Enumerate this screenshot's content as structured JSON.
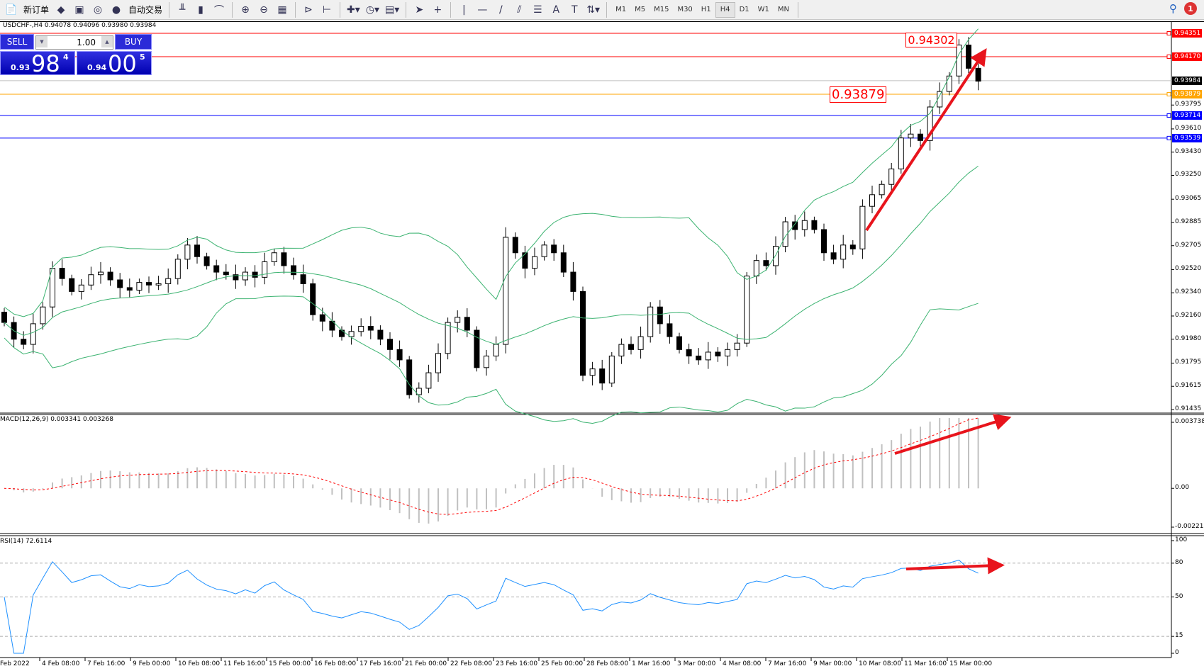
{
  "toolbar": {
    "new_order": "新订单",
    "auto_trading": "自动交易",
    "timeframes": [
      "M1",
      "M5",
      "M15",
      "M30",
      "H1",
      "H4",
      "D1",
      "W1",
      "MN"
    ],
    "active_timeframe": "H4",
    "notification_count": "1",
    "icons": [
      "bar-chart-icon",
      "candlestick-icon",
      "line-chart-icon",
      "zoom-in-icon",
      "zoom-out-icon",
      "tile-windows-icon",
      "auto-scroll-icon",
      "chart-shift-icon",
      "indicators-icon",
      "periods-clock-icon",
      "templates-icon",
      "cursor-icon",
      "crosshair-icon",
      "vertical-line-icon",
      "horizontal-line-icon",
      "trendline-icon",
      "fibonacci-icon",
      "equidistant-channel-icon",
      "text-icon",
      "text-label-icon",
      "arrows-icon"
    ]
  },
  "chart": {
    "header": "USDCHF-,H4  0.94078 0.94096 0.93980 0.93984",
    "trade_panel": {
      "sell": "SELL",
      "buy": "BUY",
      "lot": "1.00",
      "bid_small": "0.93",
      "bid_big": "98",
      "bid_sup": "4",
      "ask_small": "0.94",
      "ask_big": "00",
      "ask_sup": "5"
    },
    "price_axis": [
      "0.93795",
      "0.93610",
      "0.93430",
      "0.93250",
      "0.93065",
      "0.92885",
      "0.92705",
      "0.92520",
      "0.92340",
      "0.92160",
      "0.91980",
      "0.91795",
      "0.91615",
      "0.91435"
    ],
    "levels": [
      {
        "price": "0.94351",
        "color": "#ff0000"
      },
      {
        "price": "0.94170",
        "color": "#ff0000"
      },
      {
        "price": "0.93984",
        "color": "#000000",
        "line": "#c0c0c0"
      },
      {
        "price": "0.93879",
        "color": "#ffa500"
      },
      {
        "price": "0.93714",
        "color": "#0000ff"
      },
      {
        "price": "0.93539",
        "color": "#0000ff"
      }
    ],
    "labels": {
      "high": "0.94302",
      "orange": "0.93879"
    },
    "price_range": [
      0.91435,
      0.94351
    ],
    "closes": [
      0.9211,
      0.9198,
      0.9194,
      0.921,
      0.9223,
      0.9253,
      0.9245,
      0.9235,
      0.924,
      0.9248,
      0.925,
      0.9244,
      0.9238,
      0.9236,
      0.9242,
      0.924,
      0.9241,
      0.9245,
      0.926,
      0.9271,
      0.9262,
      0.9255,
      0.925,
      0.9248,
      0.9244,
      0.925,
      0.9246,
      0.9258,
      0.9265,
      0.9255,
      0.9248,
      0.9241,
      0.9217,
      0.9212,
      0.9205,
      0.92,
      0.9204,
      0.9208,
      0.9205,
      0.9198,
      0.919,
      0.9182,
      0.9155,
      0.916,
      0.9172,
      0.9187,
      0.9211,
      0.9215,
      0.9205,
      0.9176,
      0.9185,
      0.9194,
      0.9277,
      0.9265,
      0.9253,
      0.9262,
      0.9271,
      0.9265,
      0.925,
      0.9235,
      0.917,
      0.9175,
      0.9164,
      0.9185,
      0.9194,
      0.919,
      0.92,
      0.9223,
      0.921,
      0.92,
      0.919,
      0.9185,
      0.9182,
      0.9188,
      0.9185,
      0.919,
      0.9195,
      0.9247,
      0.9259,
      0.9255,
      0.927,
      0.9289,
      0.9283,
      0.929,
      0.9283,
      0.9265,
      0.926,
      0.9271,
      0.9268,
      0.9301,
      0.931,
      0.9318,
      0.933,
      0.9354,
      0.9357,
      0.9352,
      0.9378,
      0.939,
      0.9402,
      0.9426,
      0.9408,
      0.9398
    ],
    "bollinger_color": "#3cb371",
    "bull_color": "#ffffff",
    "bear_color": "#000000"
  },
  "macd": {
    "title": "MACD(12,26,9) 0.003341 0.003268",
    "axis": [
      "0.003738",
      "0.00",
      "-0.002215"
    ],
    "range": [
      -0.002215,
      0.003738
    ],
    "hist_color": "#c0c0c0",
    "signal_color": "#ff0000"
  },
  "rsi": {
    "title": "RSI(14) 72.6114",
    "axis": [
      "100",
      "80",
      "50",
      "15",
      "0"
    ],
    "levels": [
      80,
      50,
      15
    ],
    "line_color": "#1e90ff"
  },
  "time_axis": [
    "Feb 2022",
    "4 Feb 08:00",
    "7 Feb 16:00",
    "9 Feb 00:00",
    "10 Feb 08:00",
    "11 Feb 16:00",
    "15 Feb 00:00",
    "16 Feb 08:00",
    "17 Feb 16:00",
    "21 Feb 00:00",
    "22 Feb 08:00",
    "23 Feb 16:00",
    "25 Feb 00:00",
    "28 Feb 08:00",
    "1 Mar 16:00",
    "3 Mar 00:00",
    "4 Mar 08:00",
    "7 Mar 16:00",
    "9 Mar 00:00",
    "10 Mar 08:00",
    "11 Mar 16:00",
    "15 Mar 00:00"
  ],
  "annotation_color": "#e8141c"
}
